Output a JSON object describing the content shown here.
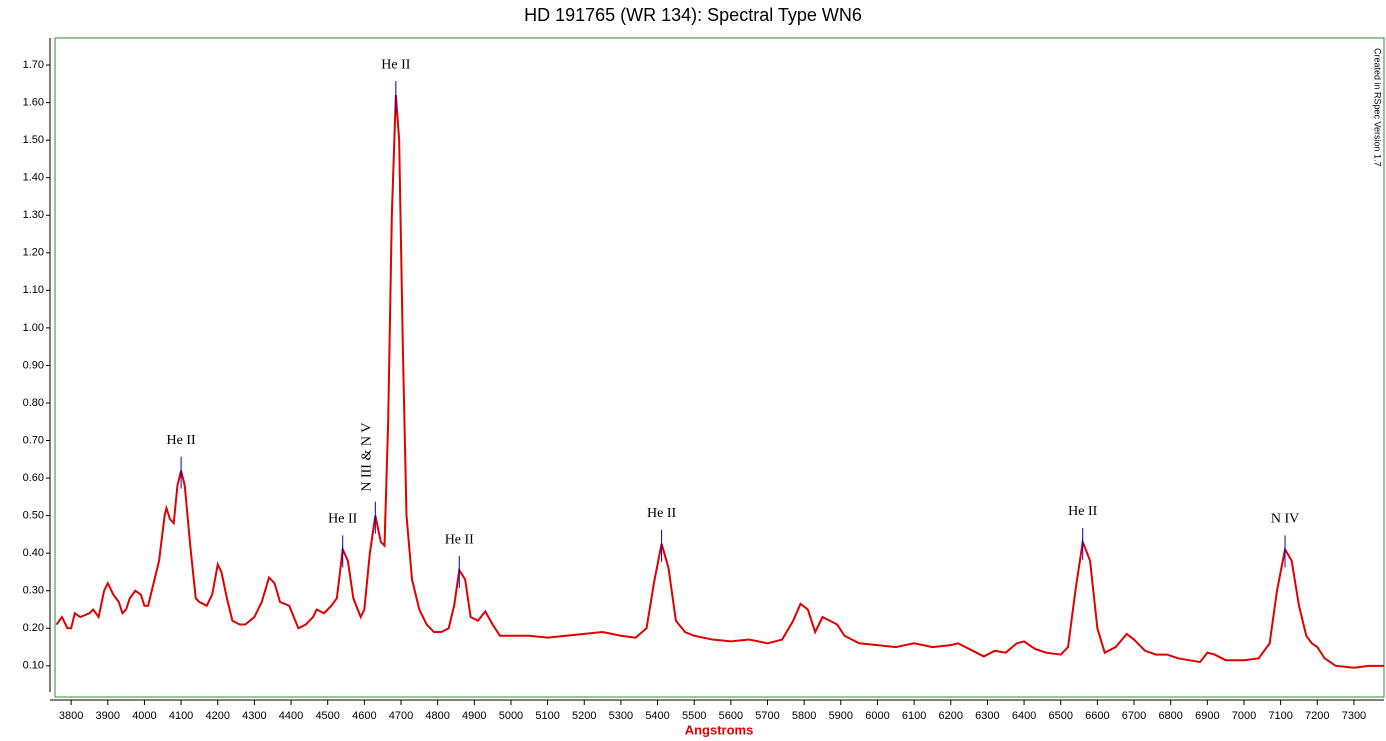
{
  "chart_data": {
    "type": "line",
    "title": "HD 191765 (WR 134): Spectral Type WN6",
    "x_label": "Angstroms",
    "credit": "Created in RSpec Version 1.7",
    "color": "#e00000",
    "x": [
      3760,
      3775,
      3790,
      3800,
      3810,
      3825,
      3850,
      3860,
      3875,
      3890,
      3900,
      3915,
      3930,
      3940,
      3950,
      3960,
      3975,
      3990,
      4000,
      4010,
      4025,
      4040,
      4055,
      4060,
      4070,
      4080,
      4090,
      4100,
      4110,
      4125,
      4140,
      4150,
      4170,
      4185,
      4200,
      4210,
      4225,
      4240,
      4260,
      4275,
      4300,
      4320,
      4340,
      4355,
      4370,
      4395,
      4420,
      4440,
      4460,
      4470,
      4490,
      4510,
      4525,
      4541,
      4555,
      4570,
      4590,
      4600,
      4615,
      4630,
      4645,
      4655,
      4665,
      4675,
      4686,
      4695,
      4705,
      4715,
      4730,
      4750,
      4770,
      4790,
      4810,
      4830,
      4845,
      4859,
      4875,
      4890,
      4910,
      4930,
      4950,
      4970,
      5000,
      5050,
      5100,
      5150,
      5200,
      5250,
      5300,
      5340,
      5370,
      5390,
      5411,
      5430,
      5450,
      5475,
      5500,
      5550,
      5600,
      5650,
      5700,
      5740,
      5770,
      5790,
      5810,
      5830,
      5850,
      5870,
      5890,
      5910,
      5950,
      6000,
      6050,
      6100,
      6150,
      6200,
      6220,
      6260,
      6290,
      6320,
      6350,
      6380,
      6400,
      6430,
      6460,
      6500,
      6520,
      6540,
      6560,
      6580,
      6600,
      6620,
      6650,
      6680,
      6700,
      6730,
      6760,
      6790,
      6820,
      6850,
      6880,
      6900,
      6920,
      6950,
      7000,
      7040,
      7070,
      7090,
      7112,
      7130,
      7150,
      7170,
      7185,
      7200,
      7220,
      7250,
      7300,
      7340,
      7382
    ],
    "values": [
      0.21,
      0.23,
      0.2,
      0.2,
      0.24,
      0.23,
      0.24,
      0.25,
      0.23,
      0.3,
      0.32,
      0.29,
      0.27,
      0.24,
      0.25,
      0.28,
      0.3,
      0.29,
      0.26,
      0.26,
      0.32,
      0.38,
      0.5,
      0.52,
      0.49,
      0.48,
      0.58,
      0.62,
      0.58,
      0.42,
      0.28,
      0.27,
      0.26,
      0.29,
      0.37,
      0.35,
      0.28,
      0.22,
      0.21,
      0.21,
      0.23,
      0.27,
      0.335,
      0.32,
      0.27,
      0.26,
      0.2,
      0.21,
      0.23,
      0.25,
      0.24,
      0.26,
      0.28,
      0.41,
      0.38,
      0.28,
      0.23,
      0.25,
      0.4,
      0.5,
      0.43,
      0.42,
      0.75,
      1.3,
      1.62,
      1.5,
      0.95,
      0.5,
      0.33,
      0.25,
      0.21,
      0.19,
      0.19,
      0.2,
      0.26,
      0.355,
      0.33,
      0.23,
      0.22,
      0.245,
      0.21,
      0.18,
      0.18,
      0.18,
      0.175,
      0.18,
      0.185,
      0.19,
      0.18,
      0.175,
      0.2,
      0.32,
      0.425,
      0.36,
      0.22,
      0.19,
      0.18,
      0.17,
      0.165,
      0.17,
      0.16,
      0.17,
      0.22,
      0.265,
      0.25,
      0.19,
      0.23,
      0.22,
      0.21,
      0.18,
      0.16,
      0.155,
      0.15,
      0.16,
      0.15,
      0.155,
      0.16,
      0.14,
      0.125,
      0.14,
      0.135,
      0.16,
      0.165,
      0.145,
      0.135,
      0.13,
      0.15,
      0.3,
      0.43,
      0.38,
      0.2,
      0.135,
      0.15,
      0.185,
      0.17,
      0.14,
      0.13,
      0.13,
      0.12,
      0.115,
      0.11,
      0.135,
      0.13,
      0.115,
      0.115,
      0.12,
      0.16,
      0.3,
      0.41,
      0.38,
      0.26,
      0.18,
      0.16,
      0.15,
      0.12,
      0.1,
      0.095,
      0.1,
      0.1
    ],
    "xlim": [
      3756,
      7382
    ],
    "ylim": [
      0.017,
      1.772
    ],
    "xticks": [
      3800,
      3900,
      4000,
      4100,
      4200,
      4300,
      4400,
      4500,
      4600,
      4700,
      4800,
      4900,
      5000,
      5100,
      5200,
      5300,
      5400,
      5500,
      5600,
      5700,
      5800,
      5900,
      6000,
      6100,
      6200,
      6300,
      6400,
      6500,
      6600,
      6700,
      6800,
      6900,
      7000,
      7100,
      7200,
      7300
    ],
    "yticks": [
      {
        "value": 0.1,
        "label": "0.10"
      },
      {
        "value": 0.2,
        "label": "0.20"
      },
      {
        "value": 0.3,
        "label": "0.30"
      },
      {
        "value": 0.4,
        "label": "0.40"
      },
      {
        "value": 0.5,
        "label": "0.50"
      },
      {
        "value": 0.6,
        "label": "0.60"
      },
      {
        "value": 0.7,
        "label": "0.70"
      },
      {
        "value": 0.8,
        "label": "0.80"
      },
      {
        "value": 0.9,
        "label": "0.90"
      },
      {
        "value": 1.0,
        "label": "1.00"
      },
      {
        "value": 1.1,
        "label": "1.10"
      },
      {
        "value": 1.2,
        "label": "1.20"
      },
      {
        "value": 1.3,
        "label": "1.30"
      },
      {
        "value": 1.4,
        "label": "1.40"
      },
      {
        "value": 1.5,
        "label": "1.50"
      },
      {
        "value": 1.6,
        "label": "1.60"
      },
      {
        "value": 1.7,
        "label": "1.70"
      }
    ],
    "annotations": [
      {
        "text": "He II",
        "x": 4100
      },
      {
        "text": "He II",
        "x": 4541
      },
      {
        "text": "N III & N V",
        "x": 4630,
        "vertical": true
      },
      {
        "text": "He II",
        "x": 4686
      },
      {
        "text": "He II",
        "x": 4859
      },
      {
        "text": "He II",
        "x": 5411
      },
      {
        "text": "He II",
        "x": 6560
      },
      {
        "text": "N IV",
        "x": 7112
      }
    ]
  }
}
